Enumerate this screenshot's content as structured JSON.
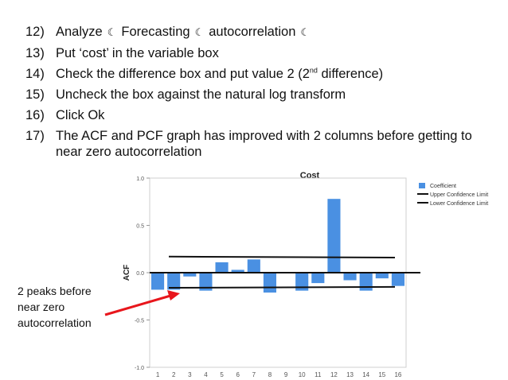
{
  "steps": [
    {
      "num": "12)",
      "parts": [
        "Analyze",
        "Forecasting",
        "autocorrelation"
      ],
      "sep_icon": "crescent-moon-icon"
    },
    {
      "num": "13)",
      "text": "Put ‘cost’ in the variable box"
    },
    {
      "num": "14)",
      "pre": "Check the difference box and put value 2 (2",
      "sup": "nd",
      "post": " difference)"
    },
    {
      "num": "15)",
      "text": "Uncheck the box against the natural log transform"
    },
    {
      "num": "16)",
      "text": "Click Ok"
    },
    {
      "num": "17)",
      "text": "The ACF and PCF graph has improved with 2 columns before getting to near zero autocorrelation"
    }
  ],
  "callout": {
    "text": "2 peaks before near zero autocorrelation",
    "arrow_color": "#e8161c"
  },
  "chart_data": {
    "type": "bar",
    "title": "Cost",
    "xlabel": "",
    "ylabel": "ACF",
    "ylim": [
      -1.0,
      1.0
    ],
    "yticks": [
      "1.0",
      "0.5",
      "0.0",
      "-0.5",
      "-1.0"
    ],
    "categories": [
      "1",
      "2",
      "3",
      "4",
      "5",
      "6",
      "7",
      "8",
      "9",
      "10",
      "11",
      "12",
      "13",
      "14",
      "15",
      "16"
    ],
    "series": [
      {
        "name": "Coefficient",
        "color": "#4a90e2",
        "values": [
          -0.18,
          -0.18,
          -0.04,
          -0.19,
          0.11,
          0.03,
          0.14,
          -0.21,
          0.0,
          -0.19,
          -0.11,
          0.78,
          -0.08,
          -0.19,
          -0.06,
          -0.14
        ]
      }
    ],
    "confidence": [
      {
        "name": "Upper Confidence Limit",
        "start": 0.17,
        "end": 0.16
      },
      {
        "name": "Lower Confidence Limit",
        "start": -0.16,
        "end": -0.15
      }
    ],
    "legend_position": "top-right",
    "grid": false
  }
}
